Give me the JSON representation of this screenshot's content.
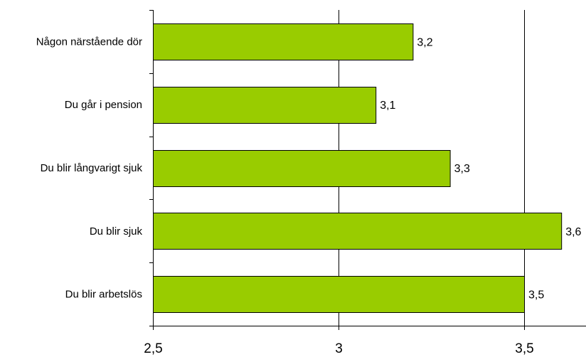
{
  "chart_data": {
    "type": "bar",
    "orientation": "horizontal",
    "categories": [
      "Någon närstående dör",
      "Du går i pension",
      "Du blir långvarigt sjuk",
      "Du blir sjuk",
      "Du blir arbetslös"
    ],
    "values": [
      3.2,
      3.1,
      3.3,
      3.6,
      3.5
    ],
    "value_labels": [
      "3,2",
      "3,1",
      "3,3",
      "3,6",
      "3,5"
    ],
    "xlim": [
      2.5,
      3.6
    ],
    "x_ticks": [
      {
        "value": 2.5,
        "label": "2,5"
      },
      {
        "value": 3,
        "label": "3"
      },
      {
        "value": 3.5,
        "label": "3,5"
      }
    ],
    "grid": "vertical",
    "title": "",
    "xlabel": "",
    "ylabel": "",
    "colors": {
      "bar": "#99cc00",
      "bar_edge": "#000000",
      "grid": "#000000",
      "axis": "#000000"
    }
  }
}
